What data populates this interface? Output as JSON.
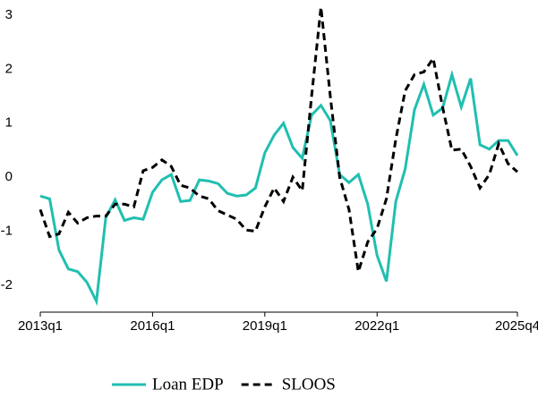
{
  "chart_data": {
    "type": "line",
    "categories": [
      "2013q1",
      null,
      null,
      null,
      null,
      null,
      null,
      null,
      null,
      null,
      null,
      null,
      "2016q1",
      null,
      null,
      null,
      null,
      null,
      null,
      null,
      null,
      null,
      null,
      null,
      "2019q1",
      null,
      null,
      null,
      null,
      null,
      null,
      null,
      null,
      null,
      null,
      null,
      "2022q1",
      null,
      null,
      null,
      null,
      null,
      null,
      null,
      null,
      null,
      null,
      null,
      null,
      null,
      null,
      "2025q4"
    ],
    "series": [
      {
        "name": "Loan EDP",
        "color": "#20bfb0",
        "dash": false,
        "values": [
          -0.35,
          -0.4,
          -1.35,
          -1.7,
          -1.75,
          -1.95,
          -2.3,
          -0.75,
          -0.42,
          -0.8,
          -0.75,
          -0.78,
          -0.28,
          -0.05,
          0.05,
          -0.45,
          -0.43,
          -0.05,
          -0.07,
          -0.12,
          -0.3,
          -0.35,
          -0.33,
          -0.2,
          0.45,
          0.78,
          1.0,
          0.55,
          0.35,
          1.15,
          1.33,
          1.05,
          0.05,
          -0.1,
          0.05,
          -0.5,
          -1.45,
          -1.93,
          -0.45,
          0.15,
          1.25,
          1.72,
          1.15,
          1.28,
          1.9,
          1.3,
          1.83,
          0.6,
          0.52,
          0.68,
          0.68,
          0.4
        ]
      },
      {
        "name": "SLOOS",
        "color": "#000000",
        "dash": true,
        "values": [
          -0.6,
          -1.1,
          -1.05,
          -0.65,
          -0.85,
          -0.75,
          -0.72,
          -0.72,
          -0.5,
          -0.5,
          -0.55,
          0.12,
          0.18,
          0.32,
          0.2,
          -0.15,
          -0.2,
          -0.35,
          -0.4,
          -0.62,
          -0.7,
          -0.78,
          -0.98,
          -1.0,
          -0.55,
          -0.2,
          -0.45,
          0.0,
          -0.25,
          1.5,
          3.15,
          1.5,
          0.0,
          -0.6,
          -1.75,
          -1.2,
          -0.95,
          -0.4,
          0.7,
          1.6,
          1.9,
          1.95,
          2.2,
          1.3,
          0.5,
          0.52,
          0.2,
          -0.2,
          0.05,
          0.62,
          0.25,
          0.1
        ]
      }
    ],
    "ylim": [
      -2.5,
      3.1
    ],
    "yticks": [
      -2,
      -1,
      0,
      1,
      2,
      3
    ],
    "grid": false
  }
}
